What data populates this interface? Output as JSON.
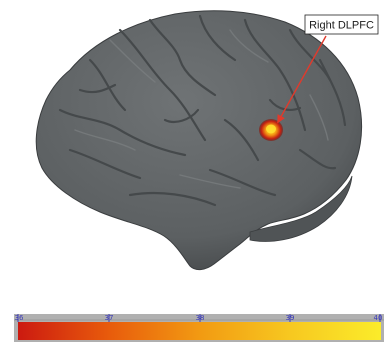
{
  "callout": {
    "label": "Right DLPFC"
  },
  "colorbar": {
    "ticks": [
      "36",
      "37",
      "38",
      "39",
      "40"
    ],
    "colors": [
      "#cc1a10",
      "#e85b0c",
      "#f29a12",
      "#f7c820",
      "#fbec2a"
    ]
  },
  "colors": {
    "brain": "#5e6264",
    "activation_core": "#ffd21a",
    "activation_edge": "#b81810",
    "arrow": "#e03a2c"
  }
}
